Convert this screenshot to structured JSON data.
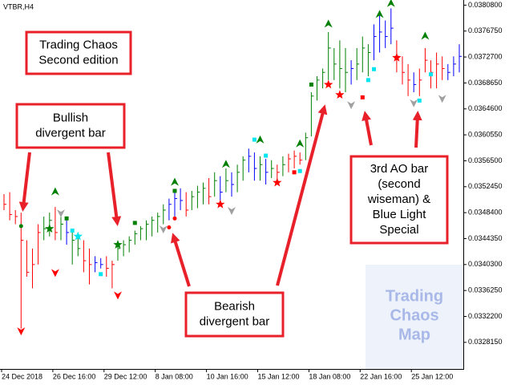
{
  "chart_data": {
    "type": "ohlc",
    "symbol": "VTBR,H4",
    "categories": [
      "24 Dec 2018",
      null,
      null,
      null,
      null,
      null,
      null,
      null,
      null,
      "26 Dec 16:00",
      null,
      null,
      null,
      null,
      null,
      null,
      null,
      null,
      "29 Dec 12:00",
      null,
      null,
      null,
      null,
      null,
      null,
      null,
      null,
      "8 Jan 08:00",
      null,
      null,
      null,
      null,
      null,
      null,
      null,
      null,
      "10 Jan 16:00",
      null,
      null,
      null,
      null,
      null,
      null,
      null,
      null,
      "15 Jan 12:00",
      null,
      null,
      null,
      null,
      null,
      null,
      null,
      null,
      "18 Jan 08:00",
      null,
      null,
      null,
      null,
      null,
      null,
      null,
      null,
      "22 Jan 16:00",
      null,
      null,
      null,
      null,
      null,
      null,
      null,
      null,
      "25 Jan 12:00",
      null,
      null,
      null,
      null,
      null,
      null,
      null,
      null
    ],
    "high": [
      0.03513,
      0.03516,
      0.03488,
      0.03484,
      0.03441,
      0.03428,
      0.03466,
      0.03478,
      0.03484,
      0.03493,
      0.03478,
      0.03472,
      0.03459,
      0.03453,
      0.03441,
      0.03428,
      0.03416,
      0.03413,
      0.03416,
      0.03409,
      0.03434,
      0.03441,
      0.03447,
      0.03456,
      0.03463,
      0.03472,
      0.03478,
      0.03484,
      0.03497,
      0.03506,
      0.03516,
      0.03522,
      0.03516,
      0.03518,
      0.03526,
      0.03531,
      0.03538,
      0.03547,
      0.03541,
      0.03553,
      0.03547,
      0.03559,
      0.03572,
      0.03584,
      0.03578,
      0.03572,
      0.03568,
      0.03566,
      0.03559,
      0.03572,
      0.03576,
      0.03581,
      0.03578,
      0.03609,
      0.03672,
      0.03697,
      0.03709,
      0.03766,
      0.03741,
      0.03753,
      0.03741,
      0.03722,
      0.03741,
      0.03759,
      0.03747,
      0.03778,
      0.03797,
      0.03784,
      0.03803,
      0.03753,
      0.03728,
      0.03716,
      0.03703,
      0.03709,
      0.03741,
      0.03722,
      0.03734,
      0.03728,
      0.03716,
      0.03728,
      0.03747
    ],
    "low": [
      0.03488,
      0.03472,
      0.03466,
      0.03303,
      0.03384,
      0.03366,
      0.03403,
      0.03441,
      0.03447,
      0.03441,
      0.03441,
      0.03434,
      0.03403,
      0.03416,
      0.03391,
      0.03372,
      0.03391,
      0.03397,
      0.03384,
      0.03366,
      0.03409,
      0.03416,
      0.03422,
      0.03434,
      0.03441,
      0.03441,
      0.03447,
      0.03453,
      0.03466,
      0.03472,
      0.03478,
      0.03488,
      0.03478,
      0.03488,
      0.03491,
      0.03497,
      0.03497,
      0.03509,
      0.03503,
      0.03516,
      0.03509,
      0.03516,
      0.03534,
      0.03547,
      0.03534,
      0.03534,
      0.03528,
      0.03538,
      0.03534,
      0.03541,
      0.03547,
      0.03553,
      0.03559,
      0.03566,
      0.03603,
      0.03659,
      0.03678,
      0.03691,
      0.03691,
      0.03678,
      0.03672,
      0.03684,
      0.03691,
      0.03703,
      0.03697,
      0.03722,
      0.03734,
      0.03741,
      0.03747,
      0.03703,
      0.03684,
      0.03666,
      0.03672,
      0.03666,
      0.03703,
      0.03678,
      0.03678,
      0.03691,
      0.03691,
      0.03697,
      0.03703
    ],
    "close": [
      0.03497,
      0.03481,
      0.03478,
      0.03441,
      0.03391,
      0.03403,
      0.03453,
      0.03459,
      0.03472,
      0.03453,
      0.03466,
      0.03453,
      0.03441,
      0.03428,
      0.03409,
      0.03403,
      0.03406,
      0.03403,
      0.03397,
      0.03403,
      0.03428,
      0.03434,
      0.03441,
      0.03451,
      0.03459,
      0.03466,
      0.03472,
      0.03478,
      0.03488,
      0.03497,
      0.03506,
      0.03503,
      0.03488,
      0.03509,
      0.03516,
      0.03522,
      0.03509,
      0.03534,
      0.03516,
      0.03534,
      0.03528,
      0.03547,
      0.03566,
      0.03572,
      0.03553,
      0.03559,
      0.03547,
      0.03553,
      0.03547,
      0.03559,
      0.03568,
      0.03572,
      0.03566,
      0.03601,
      0.03666,
      0.03691,
      0.03703,
      0.03741,
      0.03716,
      0.03709,
      0.03703,
      0.03709,
      0.03716,
      0.03741,
      0.03734,
      0.03759,
      0.03766,
      0.03759,
      0.03772,
      0.03728,
      0.03703,
      0.03691,
      0.03684,
      0.03691,
      0.03722,
      0.03703,
      0.03716,
      0.03709,
      0.03703,
      0.03716,
      0.03728
    ],
    "bar_colors": [
      "r",
      "r",
      "r",
      "r",
      "r",
      "r",
      "r",
      "g",
      "g",
      "r",
      "g",
      "b",
      "g",
      "g",
      "r",
      "r",
      "b",
      "b",
      "r",
      "r",
      "g",
      "g",
      "g",
      "g",
      "g",
      "g",
      "g",
      "g",
      "g",
      "b",
      "b",
      "b",
      "r",
      "g",
      "g",
      "g",
      "r",
      "g",
      "b",
      "g",
      "b",
      "g",
      "g",
      "b",
      "b",
      "g",
      "b",
      "g",
      "r",
      "g",
      "r",
      "r",
      "r",
      "g",
      "g",
      "g",
      "g",
      "g",
      "g",
      "g",
      "g",
      "b",
      "g",
      "g",
      "g",
      "b",
      "b",
      "b",
      "b",
      "r",
      "r",
      "r",
      "b",
      "r",
      "r",
      "r",
      "r",
      "r",
      "b",
      "b",
      "b"
    ],
    "palette": {
      "r": "#ff0000",
      "g": "#008000",
      "b": "#0000ff",
      "c": "#00e5ee",
      "gray": "#a0a0a0"
    },
    "signals": [
      {
        "bar": 9,
        "price": 0.03516,
        "kind": "up"
      },
      {
        "bar": 30,
        "price": 0.03531,
        "kind": "up"
      },
      {
        "bar": 39,
        "price": 0.03559,
        "kind": "up"
      },
      {
        "bar": 45,
        "price": 0.03597,
        "kind": "up"
      },
      {
        "bar": 52,
        "price": 0.03591,
        "kind": "up"
      },
      {
        "bar": 57,
        "price": 0.03778,
        "kind": "up"
      },
      {
        "bar": 66,
        "price": 0.03793,
        "kind": "up"
      },
      {
        "bar": 68,
        "price": 0.0381,
        "kind": "up"
      },
      {
        "bar": 74,
        "price": 0.03759,
        "kind": "up"
      },
      {
        "bar": 3,
        "price": 0.033,
        "kind": "down-red"
      },
      {
        "bar": 9,
        "price": 0.03391,
        "kind": "down-red"
      },
      {
        "bar": 20,
        "price": 0.03356,
        "kind": "down-red"
      },
      {
        "bar": 10,
        "price": 0.03484,
        "kind": "down-gray"
      },
      {
        "bar": 28,
        "price": 0.03459,
        "kind": "down-gray"
      },
      {
        "bar": 40,
        "price": 0.03488,
        "kind": "down-gray"
      },
      {
        "bar": 61,
        "price": 0.03653,
        "kind": "down-gray"
      },
      {
        "bar": 72,
        "price": 0.03656,
        "kind": "down-gray"
      },
      {
        "bar": 77,
        "price": 0.03663,
        "kind": "down-gray"
      },
      {
        "bar": 8,
        "price": 0.03459,
        "kind": "star-g"
      },
      {
        "bar": 20,
        "price": 0.03434,
        "kind": "star-g"
      },
      {
        "bar": 13,
        "price": 0.03447,
        "kind": "star-c"
      },
      {
        "bar": 38,
        "price": 0.03497,
        "kind": "star-r"
      },
      {
        "bar": 48,
        "price": 0.03531,
        "kind": "star-r"
      },
      {
        "bar": 57,
        "price": 0.03684,
        "kind": "star-r"
      },
      {
        "bar": 59,
        "price": 0.03668,
        "kind": "star-r"
      },
      {
        "bar": 69,
        "price": 0.03726,
        "kind": "star-r"
      },
      {
        "bar": 11,
        "price": 0.03475,
        "kind": "sq-g"
      },
      {
        "bar": 23,
        "price": 0.03468,
        "kind": "sq-g"
      },
      {
        "bar": 30,
        "price": 0.03518,
        "kind": "sq-g"
      },
      {
        "bar": 44,
        "price": 0.03598,
        "kind": "sq-c"
      },
      {
        "bar": 54,
        "price": 0.03684,
        "kind": "sq-g"
      },
      {
        "bar": 12,
        "price": 0.03456,
        "kind": "sq-c"
      },
      {
        "bar": 17,
        "price": 0.03388,
        "kind": "sq-c"
      },
      {
        "bar": 46,
        "price": 0.03573,
        "kind": "sq-c"
      },
      {
        "bar": 52,
        "price": 0.03549,
        "kind": "sq-c"
      },
      {
        "bar": 51,
        "price": 0.03547,
        "kind": "sq-r"
      },
      {
        "bar": 63,
        "price": 0.03664,
        "kind": "sq-r"
      },
      {
        "bar": 64,
        "price": 0.03691,
        "kind": "sq-c"
      },
      {
        "bar": 65,
        "price": 0.03708,
        "kind": "sq-c"
      },
      {
        "bar": 73,
        "price": 0.03659,
        "kind": "sq-c"
      },
      {
        "bar": 75,
        "price": 0.037,
        "kind": "sq-c"
      },
      {
        "bar": 3,
        "price": 0.03463,
        "kind": "dot-g"
      },
      {
        "bar": 30,
        "price": 0.03475,
        "kind": "dot-r"
      },
      {
        "bar": 29,
        "price": 0.03461,
        "kind": "dot-r"
      }
    ],
    "ylim": [
      0.0324,
      0.03816
    ],
    "yticks": [
      {
        "value": 0.03808,
        "label": "0.0380800"
      },
      {
        "value": 0.037675,
        "label": "0.0376750"
      },
      {
        "value": 0.03727,
        "label": "0.0372700"
      },
      {
        "value": 0.036865,
        "label": "0.0368650"
      },
      {
        "value": 0.03646,
        "label": "0.0364600"
      },
      {
        "value": 0.036055,
        "label": "0.0360550"
      },
      {
        "value": 0.03565,
        "label": "0.0356500"
      },
      {
        "value": 0.035245,
        "label": "0.0352450"
      },
      {
        "value": 0.03484,
        "label": "0.0348400"
      },
      {
        "value": 0.034435,
        "label": "0.0344350"
      },
      {
        "value": 0.03403,
        "label": "0.0340300"
      },
      {
        "value": 0.033625,
        "label": "0.0336250"
      },
      {
        "value": 0.03322,
        "label": "0.0332200"
      },
      {
        "value": 0.032815,
        "label": "0.0328150"
      }
    ],
    "annotations": {
      "title": [
        "Trading Chaos",
        "Second edition"
      ],
      "bullish": [
        "Bullish",
        "divergent bar"
      ],
      "bearish": [
        "Bearish",
        "divergent bar"
      ],
      "wiseman": [
        "3rd AO bar",
        "(second",
        "wiseman) &",
        "Blue Light",
        "Special"
      ],
      "watermark": [
        "Trading",
        "Chaos",
        "Map"
      ]
    }
  }
}
